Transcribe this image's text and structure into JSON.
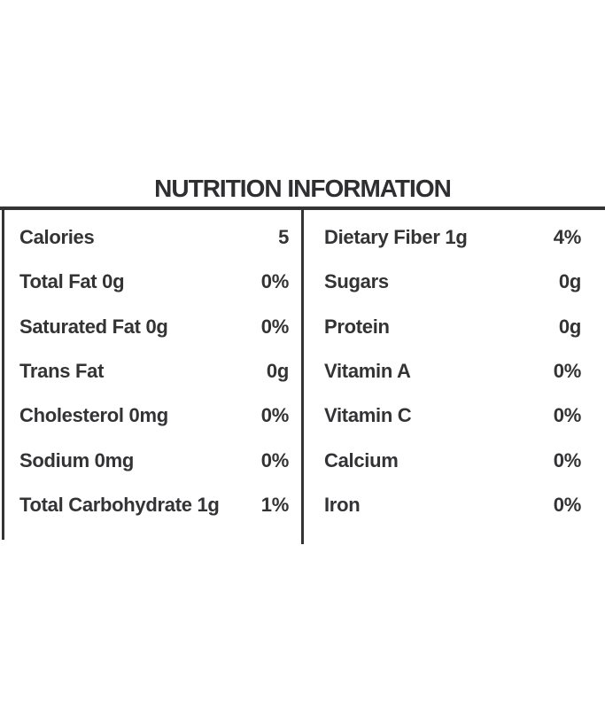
{
  "label": {
    "title": "NUTRITION INFORMATION",
    "columns": {
      "left": [
        {
          "name": "Calories",
          "value": "5"
        },
        {
          "name": "Total Fat 0g",
          "value": "0%"
        },
        {
          "name": "Saturated Fat 0g",
          "value": "0%"
        },
        {
          "name": "Trans Fat",
          "value": "0g"
        },
        {
          "name": "Cholesterol 0mg",
          "value": "0%"
        },
        {
          "name": "Sodium 0mg",
          "value": "0%"
        },
        {
          "name": "Total Carbohydrate 1g",
          "value": "1%"
        }
      ],
      "right": [
        {
          "name": "Dietary Fiber 1g",
          "value": "4%"
        },
        {
          "name": "Sugars",
          "value": "0g"
        },
        {
          "name": "Protein",
          "value": "0g"
        },
        {
          "name": "Vitamin A",
          "value": "0%"
        },
        {
          "name": "Vitamin C",
          "value": "0%"
        },
        {
          "name": "Calcium",
          "value": "0%"
        },
        {
          "name": "Iron",
          "value": "0%"
        }
      ]
    },
    "colors": {
      "text": "#333335",
      "rule": "#343436",
      "background": "#ffffff"
    }
  }
}
